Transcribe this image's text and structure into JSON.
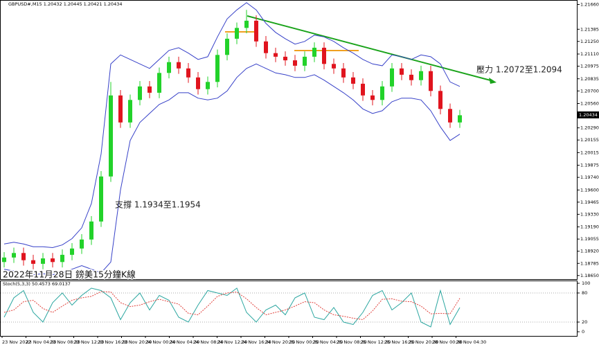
{
  "chart_data": [
    {
      "type": "candlestick",
      "title": "GBPUSD#,M15 1.20432 1.20445 1.20421 1.20434",
      "up_color": "#22d22a",
      "down_color": "#e0141e",
      "band_color": "#3640c8",
      "open": [
        1.188,
        1.1885,
        1.189,
        1.1882,
        1.1878,
        1.1884,
        1.188,
        1.1888,
        1.1895,
        1.1905,
        1.1925,
        1.1975,
        1.2065,
        1.2035,
        1.206,
        1.2075,
        1.2068,
        1.209,
        1.2102,
        1.2095,
        1.2085,
        1.2072,
        1.208,
        1.211,
        1.2128,
        1.214,
        1.2148,
        1.2125,
        1.2112,
        1.2108,
        1.2104,
        1.2098,
        1.2108,
        1.2118,
        1.21,
        1.2095,
        1.2085,
        1.2078,
        1.2065,
        1.206,
        1.2075,
        1.2095,
        1.2088,
        1.2082,
        1.2092,
        1.207,
        1.205,
        1.2035
      ],
      "high": [
        1.1891,
        1.1896,
        1.1896,
        1.1888,
        1.189,
        1.189,
        1.1894,
        1.1901,
        1.1911,
        1.1931,
        1.1981,
        1.208,
        1.2071,
        1.2066,
        1.2081,
        1.2081,
        1.2096,
        1.2108,
        1.2108,
        1.2101,
        1.2091,
        1.2086,
        1.2116,
        1.2134,
        1.2146,
        1.216,
        1.2154,
        1.2131,
        1.2118,
        1.2114,
        1.211,
        1.2114,
        1.2124,
        1.2124,
        1.2106,
        1.2101,
        1.2091,
        1.2084,
        1.2071,
        1.2081,
        1.2101,
        1.2101,
        1.2094,
        1.2098,
        1.2098,
        1.2076,
        1.2056,
        1.2049
      ],
      "low": [
        1.1874,
        1.1879,
        1.1876,
        1.1872,
        1.1872,
        1.1874,
        1.1874,
        1.1882,
        1.1889,
        1.1899,
        1.1919,
        1.1969,
        1.2029,
        1.2029,
        1.2054,
        1.2062,
        1.2062,
        1.2084,
        1.2089,
        1.2079,
        1.2066,
        1.2066,
        1.2074,
        1.2104,
        1.2122,
        1.2134,
        1.2119,
        1.2106,
        1.2102,
        1.2098,
        1.2092,
        1.2092,
        1.2102,
        1.2094,
        1.2089,
        1.2079,
        1.2072,
        1.2059,
        1.2054,
        1.2054,
        1.2069,
        1.2082,
        1.2076,
        1.2076,
        1.2064,
        1.2044,
        1.2029,
        1.2029
      ],
      "close": [
        1.1885,
        1.189,
        1.1882,
        1.1878,
        1.1884,
        1.188,
        1.1888,
        1.1895,
        1.1905,
        1.1925,
        1.1975,
        1.2065,
        1.2035,
        1.206,
        1.2075,
        1.2068,
        1.209,
        1.2102,
        1.2095,
        1.2085,
        1.2072,
        1.208,
        1.211,
        1.2128,
        1.214,
        1.2148,
        1.2125,
        1.2112,
        1.2108,
        1.2104,
        1.2098,
        1.2108,
        1.2118,
        1.21,
        1.2095,
        1.2085,
        1.2078,
        1.2065,
        1.206,
        1.2075,
        1.2095,
        1.2088,
        1.2082,
        1.2092,
        1.207,
        1.205,
        1.2035,
        1.2043
      ],
      "upper_band": [
        1.19,
        1.1902,
        1.19,
        1.1897,
        1.1897,
        1.1896,
        1.1899,
        1.1906,
        1.1918,
        1.1945,
        1.2,
        1.21,
        1.211,
        1.2105,
        1.21,
        1.2095,
        1.2105,
        1.2115,
        1.2118,
        1.2112,
        1.2105,
        1.2108,
        1.213,
        1.215,
        1.216,
        1.2168,
        1.216,
        1.2145,
        1.2135,
        1.2128,
        1.2122,
        1.2125,
        1.2132,
        1.213,
        1.2125,
        1.2118,
        1.2112,
        1.2105,
        1.21,
        1.2098,
        1.211,
        1.2108,
        1.2105,
        1.211,
        1.2108,
        1.21,
        1.208,
        1.2075
      ],
      "lower_band": [
        1.1872,
        1.187,
        1.1868,
        1.1866,
        1.1867,
        1.1866,
        1.1868,
        1.1872,
        1.1876,
        1.1872,
        1.1868,
        1.188,
        1.196,
        1.2015,
        1.2035,
        1.2045,
        1.2055,
        1.206,
        1.2068,
        1.2068,
        1.2062,
        1.206,
        1.2062,
        1.207,
        1.2085,
        1.2095,
        1.21,
        1.2095,
        1.209,
        1.2088,
        1.2085,
        1.2085,
        1.2088,
        1.2082,
        1.2075,
        1.2068,
        1.206,
        1.205,
        1.2045,
        1.2048,
        1.2058,
        1.2062,
        1.2062,
        1.206,
        1.2048,
        1.203,
        1.2015,
        1.2022
      ],
      "current_price": 1.20434,
      "ylim": [
        1.1861,
        1.2171
      ],
      "yticks": [
        {
          "value": 1.2166,
          "label": "1.21660"
        },
        {
          "value": 1.21385,
          "label": "1.21385"
        },
        {
          "value": 1.2125,
          "label": "1.21250"
        },
        {
          "value": 1.2111,
          "label": "1.21110"
        },
        {
          "value": 1.20975,
          "label": "1.20975"
        },
        {
          "value": 1.20835,
          "label": "1.20835"
        },
        {
          "value": 1.207,
          "label": "1.20700"
        },
        {
          "value": 1.2056,
          "label": "1.20560"
        },
        {
          "value": 1.2029,
          "label": "1.20290"
        },
        {
          "value": 1.20155,
          "label": "1.20155"
        },
        {
          "value": 1.20015,
          "label": "1.20015"
        },
        {
          "value": 1.19875,
          "label": "1.19875"
        },
        {
          "value": 1.1974,
          "label": "1.19740"
        },
        {
          "value": 1.196,
          "label": "1.19600"
        },
        {
          "value": 1.19465,
          "label": "1.19465"
        },
        {
          "value": 1.1933,
          "label": "1.19330"
        },
        {
          "value": 1.1919,
          "label": "1.19190"
        },
        {
          "value": 1.19055,
          "label": "1.19055"
        },
        {
          "value": 1.1892,
          "label": "1.18920"
        },
        {
          "value": 1.18785,
          "label": "1.18785"
        },
        {
          "value": 1.1865,
          "label": "1.18650"
        }
      ],
      "annotations": [
        "壓力 1.2072至1.2094",
        "支撐 1.1934至1.1954",
        "2022年11月28日 鎊美15分鐘K線"
      ]
    },
    {
      "type": "line",
      "title": "Stoch(5,3,3) 50.4573 69.0137",
      "series": [
        {
          "color": "#2aa6a0",
          "dash": false,
          "values": [
            30,
            70,
            85,
            40,
            20,
            60,
            80,
            55,
            75,
            90,
            85,
            70,
            25,
            60,
            80,
            45,
            75,
            65,
            30,
            20,
            55,
            85,
            80,
            75,
            90,
            40,
            20,
            45,
            55,
            35,
            70,
            80,
            30,
            25,
            50,
            20,
            15,
            40,
            75,
            85,
            45,
            60,
            80,
            20,
            10,
            85,
            15,
            50
          ]
        },
        {
          "color": "#e0403a",
          "dash": true,
          "values": [
            40,
            45,
            62,
            65,
            48,
            40,
            53,
            65,
            70,
            73,
            83,
            82,
            60,
            52,
            55,
            62,
            67,
            62,
            57,
            38,
            35,
            53,
            73,
            80,
            82,
            68,
            50,
            35,
            40,
            45,
            53,
            62,
            60,
            45,
            35,
            32,
            28,
            25,
            43,
            67,
            68,
            63,
            62,
            53,
            37,
            38,
            37,
            69
          ]
        }
      ],
      "ylim": [
        0,
        100
      ],
      "yticks": [
        0,
        20,
        80,
        100
      ],
      "levels": [
        20,
        80
      ]
    }
  ],
  "time_axis": [
    "23 Nov 2022",
    "23 Nov 04:30",
    "23 Nov 08:30",
    "23 Nov 12:30",
    "23 Nov 16:30",
    "23 Nov 20:30",
    "24 Nov 00:30",
    "24 Nov 04:30",
    "24 Nov 08:30",
    "24 Nov 12:30",
    "24 Nov 16:30",
    "24 Nov 20:30",
    "25 Nov 00:30",
    "25 Nov 04:30",
    "25 Nov 08:30",
    "25 Nov 12:30",
    "25 Nov 16:30",
    "25 Nov 20:30",
    "28 Nov 00:30",
    "28 Nov 04:30"
  ]
}
